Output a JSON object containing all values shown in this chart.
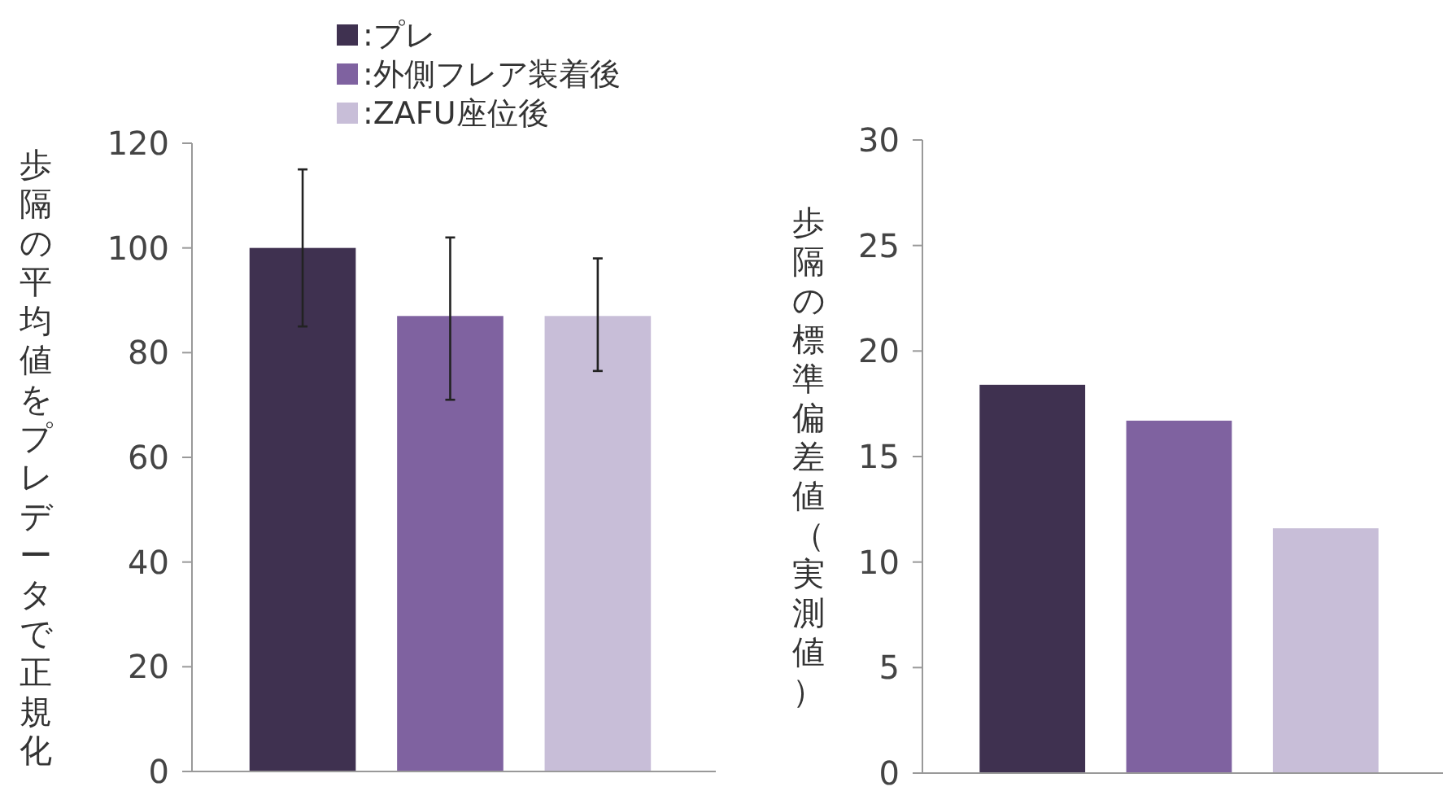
{
  "chart_data": [
    {
      "type": "bar",
      "ylabel": "歩隔の平均値をプレデータで正規化",
      "categories": [
        null
      ],
      "ylim": [
        0,
        120
      ],
      "yticks": [
        0,
        20,
        40,
        60,
        80,
        100,
        120
      ],
      "legend": "top",
      "grid": false,
      "series": [
        {
          "name": ":プレ",
          "color": "#3f3150",
          "values": [
            100
          ],
          "errors": [
            [
              85,
              115
            ]
          ]
        },
        {
          "name": ":外側フレア装着後",
          "color": "#7f62a0",
          "values": [
            87
          ],
          "errors": [
            [
              71,
              102
            ]
          ]
        },
        {
          "name": ":ZAFU座位後",
          "color": "#c8bed8",
          "values": [
            87
          ],
          "errors": [
            [
              76.5,
              98
            ]
          ]
        }
      ]
    },
    {
      "type": "bar",
      "ylabel": "歩隔の標準偏差値（実測値）",
      "categories": [
        null
      ],
      "ylim": [
        0,
        30
      ],
      "yticks": [
        0,
        5,
        10,
        15,
        20,
        25,
        30
      ],
      "grid": false,
      "series": [
        {
          "color": "#3f3150",
          "values": [
            18.4
          ]
        },
        {
          "color": "#7f62a0",
          "values": [
            16.7
          ]
        },
        {
          "color": "#c8bed8",
          "values": [
            11.6
          ]
        }
      ]
    }
  ]
}
